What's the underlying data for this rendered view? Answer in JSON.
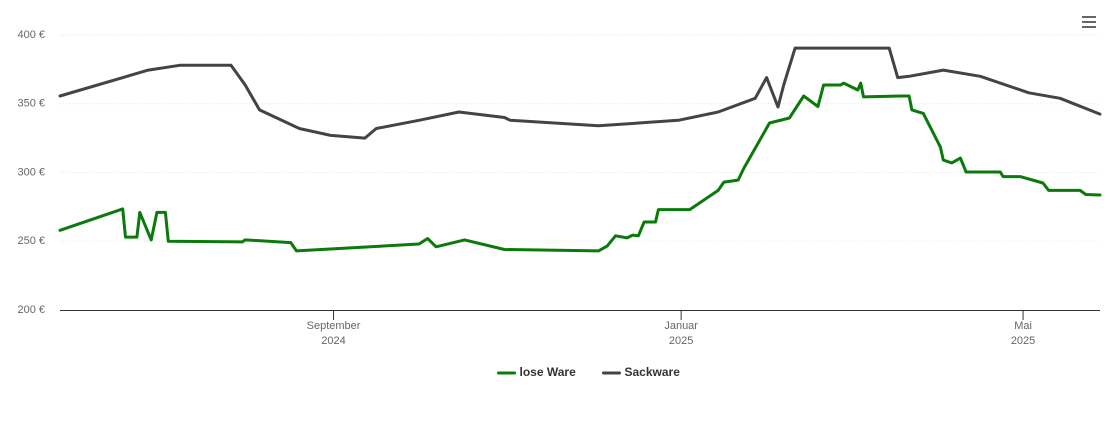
{
  "chart_data": {
    "type": "line",
    "xlim": [
      "2024-05-28",
      "2025-05-28"
    ],
    "xticks": [
      {
        "value": "2024-09-01",
        "label": [
          "September",
          "2024"
        ]
      },
      {
        "value": "2025-01-01",
        "label": [
          "Januar",
          "2025"
        ]
      },
      {
        "value": "2025-05-01",
        "label": [
          "Mai",
          "2025"
        ]
      }
    ],
    "ylim": [
      200,
      400
    ],
    "yticks": [
      {
        "value": 200,
        "label": "200 €"
      },
      {
        "value": 250,
        "label": "250 €"
      },
      {
        "value": 300,
        "label": "300 €"
      },
      {
        "value": 350,
        "label": "350 €"
      },
      {
        "value": 400,
        "label": "400 €"
      }
    ],
    "grid": true,
    "legend": "bottom",
    "series": [
      {
        "name": "lose Ware",
        "color": "#0a7a0a",
        "x": [
          "2024-05-28",
          "2024-06-19",
          "2024-06-20",
          "2024-06-24",
          "2024-06-25",
          "2024-06-29",
          "2024-07-01",
          "2024-07-04",
          "2024-07-05",
          "2024-07-31",
          "2024-08-01",
          "2024-08-17",
          "2024-08-19",
          "2024-10-01",
          "2024-10-04",
          "2024-10-07",
          "2024-10-17",
          "2024-10-31",
          "2024-12-03",
          "2024-12-06",
          "2024-12-09",
          "2024-12-13",
          "2024-12-15",
          "2024-12-17",
          "2024-12-19",
          "2024-12-23",
          "2024-12-24",
          "2025-01-04",
          "2025-01-14",
          "2025-01-16",
          "2025-01-21",
          "2025-01-23",
          "2025-02-01",
          "2025-02-08",
          "2025-02-13",
          "2025-02-18",
          "2025-02-20",
          "2025-02-26",
          "2025-02-27",
          "2025-03-04",
          "2025-03-05",
          "2025-03-06",
          "2025-03-19",
          "2025-03-22",
          "2025-03-23",
          "2025-03-27",
          "2025-04-02",
          "2025-04-03",
          "2025-04-06",
          "2025-04-09",
          "2025-04-11",
          "2025-04-23",
          "2025-04-24",
          "2025-04-30",
          "2025-05-08",
          "2025-05-10",
          "2025-05-21",
          "2025-05-23",
          "2025-05-28"
        ],
        "values": [
          258,
          273.5,
          253,
          253,
          271,
          251,
          271,
          271,
          250,
          249.5,
          251,
          249,
          243,
          248,
          252,
          246,
          251,
          244,
          243,
          246.5,
          254,
          252.4,
          254.5,
          254,
          264,
          264,
          273,
          273,
          287,
          293,
          294.5,
          303,
          336,
          339.6,
          355.6,
          348,
          363.6,
          363.6,
          365,
          360,
          365,
          355,
          355.6,
          355.6,
          345.5,
          343,
          318.5,
          309,
          307,
          310.5,
          300.4,
          300.4,
          297,
          297,
          292.4,
          287,
          287,
          284,
          283.6
        ]
      },
      {
        "name": "Sackware",
        "color": "#434348",
        "x": [
          "2024-05-28",
          "2024-06-28",
          "2024-07-09",
          "2024-07-27",
          "2024-08-01",
          "2024-08-06",
          "2024-08-20",
          "2024-08-31",
          "2024-09-12",
          "2024-09-16",
          "2024-10-01",
          "2024-10-15",
          "2024-10-31",
          "2024-11-02",
          "2024-12-03",
          "2024-12-31",
          "2025-01-14",
          "2025-01-27",
          "2025-01-31",
          "2025-02-04",
          "2025-02-06",
          "2025-02-10",
          "2025-03-15",
          "2025-03-18",
          "2025-03-22",
          "2025-04-03",
          "2025-04-16",
          "2025-05-03",
          "2025-05-14",
          "2025-05-28"
        ],
        "values": [
          355.6,
          374.5,
          378,
          378,
          363.6,
          345.5,
          332,
          327,
          325,
          332,
          338,
          344,
          340,
          338,
          334,
          338,
          344,
          354,
          369,
          347.6,
          363.6,
          390.5,
          390.5,
          369,
          370,
          374.5,
          370,
          358,
          354,
          342.5
        ]
      }
    ]
  }
}
